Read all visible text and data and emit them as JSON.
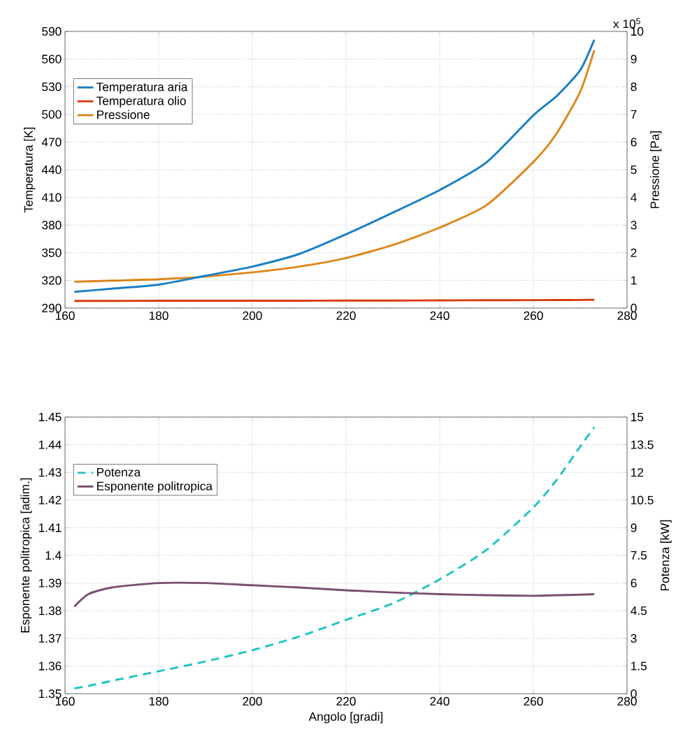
{
  "chart_data": [
    {
      "type": "line",
      "ylabel": "Temperatura [K]",
      "y2label": "Pressione [Pa]",
      "annotations": [
        "x 10$^{5}$"
      ],
      "x": [
        162,
        170,
        180,
        190,
        200,
        210,
        220,
        230,
        240,
        250,
        260,
        265,
        270,
        273
      ],
      "series": [
        {
          "name": "Temperatura aria",
          "color": "#1a7fc4",
          "values": [
            307.6,
            311,
            315.4,
            325,
            335,
            348.7,
            370,
            393.5,
            418,
            448,
            499,
            520,
            548,
            581
          ]
        },
        {
          "name": "Temperatura olio",
          "color": "#d93a12",
          "values": [
            297.8,
            297.8,
            297.9,
            297.9,
            298,
            298,
            298.1,
            298.2,
            298.3,
            298.5,
            298.6,
            298.7,
            298.8,
            299
          ]
        },
        {
          "name": "Pressione",
          "color": "#e0861a",
          "axis": "y2",
          "values": [
            0.95,
            0.99,
            1.04,
            1.14,
            1.29,
            1.5,
            1.81,
            2.28,
            2.91,
            3.72,
            5.28,
            6.32,
            7.82,
            9.32
          ]
        }
      ],
      "xlim": [
        160,
        280
      ],
      "xticks": [
        160,
        180,
        200,
        220,
        240,
        260,
        280
      ],
      "ylim": [
        290,
        590
      ],
      "yticks": [
        290,
        320,
        350,
        380,
        410,
        440,
        470,
        500,
        530,
        560,
        590
      ],
      "y2lim": [
        0,
        10
      ],
      "y2ticks": [
        0,
        1,
        2,
        3,
        4,
        5,
        6,
        7,
        8,
        9,
        10
      ],
      "grid": true,
      "legend": "top left",
      "marker": "none",
      "line_style": "solid"
    },
    {
      "type": "line",
      "xlabel": "Angolo [gradi]",
      "ylabel": "Esponente politropica [adim.]",
      "y2label": "Potenza [kW]",
      "x": [
        162,
        165,
        170,
        180,
        190,
        200,
        210,
        220,
        230,
        240,
        250,
        260,
        265,
        270,
        273
      ],
      "series": [
        {
          "name": "Potenza",
          "color": "#1fc4c4",
          "axis": "y2",
          "line_style": "dashed",
          "values": [
            0.29,
            0.42,
            0.7,
            1.22,
            1.75,
            2.36,
            3.1,
            4.0,
            4.9,
            6.2,
            7.8,
            10.1,
            11.6,
            13.4,
            14.45
          ]
        },
        {
          "name": "Esponente politropica",
          "color": "#7a4e72",
          "values": [
            1.3815,
            1.386,
            1.3884,
            1.39,
            1.39,
            1.3892,
            1.3884,
            1.3874,
            1.3866,
            1.386,
            1.3856,
            1.3854,
            1.3856,
            1.3858,
            1.386
          ]
        }
      ],
      "xlim": [
        160,
        280
      ],
      "xticks": [
        160,
        180,
        200,
        220,
        240,
        260,
        280
      ],
      "ylim": [
        1.35,
        1.45
      ],
      "yticks": [
        1.35,
        1.36,
        1.37,
        1.38,
        1.39,
        1.4,
        1.41,
        1.42,
        1.43,
        1.44,
        1.45
      ],
      "y2lim": [
        0,
        15
      ],
      "y2ticks": [
        0,
        1.5,
        3,
        4.5,
        6,
        7.5,
        9,
        10.5,
        12,
        13.5,
        15
      ],
      "grid": true,
      "legend": "top left",
      "marker": "none",
      "line_style": "solid"
    }
  ]
}
